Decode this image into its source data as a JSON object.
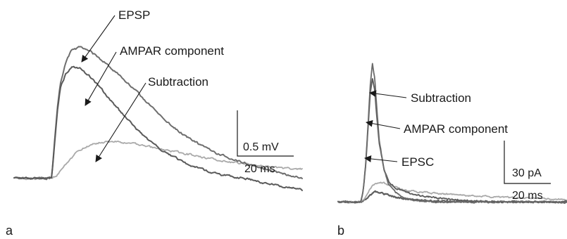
{
  "panel_a": {
    "letter": "a",
    "scalebar": {
      "vertical_label": "0.5 mV",
      "horizontal_label": "20 ms"
    }
  },
  "panel_b": {
    "letter": "b",
    "scalebar": {
      "vertical_label": "30 pA",
      "horizontal_label": "20 ms"
    }
  },
  "colors": {
    "epsp": "#6e6e6e",
    "ampar": "#5a5a5a",
    "subtraction": "#a9a9a9",
    "epsc": "#6a6a6a",
    "slow": "#5f5f5f",
    "text": "#1a1a1a"
  },
  "chart_data": [
    {
      "type": "line",
      "panel": "a",
      "title": "",
      "xlabel": "",
      "ylabel": "",
      "grid": false,
      "legend": "arrow-annotations",
      "xlim": [
        0,
        100
      ],
      "ylim": [
        -0.3,
        1.5
      ],
      "series": [
        {
          "name": "EPSP",
          "x": [
            0,
            13,
            14,
            15,
            16,
            18,
            20,
            23,
            27,
            31,
            35,
            40,
            45,
            50,
            55,
            60,
            65,
            70,
            75,
            80,
            85,
            90,
            95,
            100
          ],
          "y": [
            0,
            0,
            0.4,
            0.8,
            1.05,
            1.3,
            1.43,
            1.46,
            1.4,
            1.3,
            1.19,
            1.04,
            0.88,
            0.72,
            0.57,
            0.46,
            0.36,
            0.28,
            0.22,
            0.17,
            0.12,
            0.08,
            0.04,
            0.0
          ]
        },
        {
          "name": "AMPAR component",
          "x": [
            0,
            13,
            14,
            15,
            16,
            18,
            20,
            23,
            26,
            30,
            34,
            38,
            42,
            46,
            50,
            55,
            60,
            65,
            70,
            75,
            80,
            85,
            90,
            95,
            100
          ],
          "y": [
            0,
            0,
            0.38,
            0.75,
            1.0,
            1.17,
            1.24,
            1.22,
            1.14,
            1.0,
            0.85,
            0.7,
            0.56,
            0.44,
            0.34,
            0.24,
            0.16,
            0.1,
            0.05,
            0.02,
            0.0,
            -0.04,
            -0.07,
            -0.1,
            -0.13
          ]
        },
        {
          "name": "Subtraction",
          "x": [
            0,
            13,
            15,
            18,
            21,
            24,
            27,
            30,
            33,
            36,
            40,
            45,
            50,
            55,
            60,
            65,
            70,
            75,
            80,
            85,
            90,
            95,
            100
          ],
          "y": [
            0,
            0,
            0.04,
            0.16,
            0.27,
            0.34,
            0.38,
            0.4,
            0.41,
            0.41,
            0.39,
            0.36,
            0.33,
            0.3,
            0.27,
            0.24,
            0.21,
            0.18,
            0.16,
            0.14,
            0.12,
            0.11,
            0.1
          ]
        }
      ],
      "annotations": [
        {
          "text": "EPSP",
          "target": "EPSP"
        },
        {
          "text": "AMPAR component",
          "target": "AMPAR component"
        },
        {
          "text": "Subtraction",
          "target": "Subtraction"
        }
      ]
    },
    {
      "type": "line",
      "panel": "b",
      "title": "",
      "xlabel": "",
      "ylabel": "",
      "grid": false,
      "legend": "arrow-annotations",
      "xlim": [
        0,
        100
      ],
      "ylim": [
        -180,
        10
      ],
      "series": [
        {
          "name": "EPSC",
          "x": [
            0,
            6,
            10,
            11,
            12,
            13,
            14,
            15,
            16,
            17,
            18,
            20,
            22,
            25,
            28,
            32,
            36,
            40,
            50,
            60,
            70,
            80,
            90,
            100
          ],
          "y": [
            0,
            0,
            0,
            -15,
            -45,
            -90,
            -140,
            -168,
            -150,
            -110,
            -75,
            -40,
            -22,
            -12,
            -6,
            -3,
            -1,
            0,
            0,
            0,
            0,
            0,
            0,
            0
          ]
        },
        {
          "name": "AMPAR component",
          "x": [
            0,
            6,
            10,
            11,
            12,
            13,
            14,
            15,
            16,
            17,
            18,
            20,
            22,
            25,
            28,
            32,
            36,
            40,
            50,
            60,
            70,
            80,
            90,
            100
          ],
          "y": [
            0,
            0,
            0,
            -14,
            -42,
            -85,
            -130,
            -150,
            -135,
            -100,
            -70,
            -40,
            -25,
            -17,
            -13,
            -10,
            -8,
            -6,
            -3,
            -1,
            0,
            0,
            0,
            0
          ]
        },
        {
          "name": "Subtraction",
          "x": [
            0,
            6,
            10,
            12,
            14,
            16,
            18,
            20,
            22,
            25,
            28,
            32,
            36,
            40,
            50,
            60,
            70,
            80,
            90,
            100
          ],
          "y": [
            0,
            0,
            0,
            -6,
            -16,
            -22,
            -24,
            -23,
            -21,
            -18,
            -15,
            -13,
            -12,
            -11,
            -9,
            -7,
            -6,
            -5,
            -4,
            -3
          ]
        }
      ],
      "annotations": [
        {
          "text": "Subtraction",
          "target": "Subtraction"
        },
        {
          "text": "AMPAR component",
          "target": "AMPAR component"
        },
        {
          "text": "EPSC",
          "target": "EPSC"
        }
      ]
    }
  ]
}
